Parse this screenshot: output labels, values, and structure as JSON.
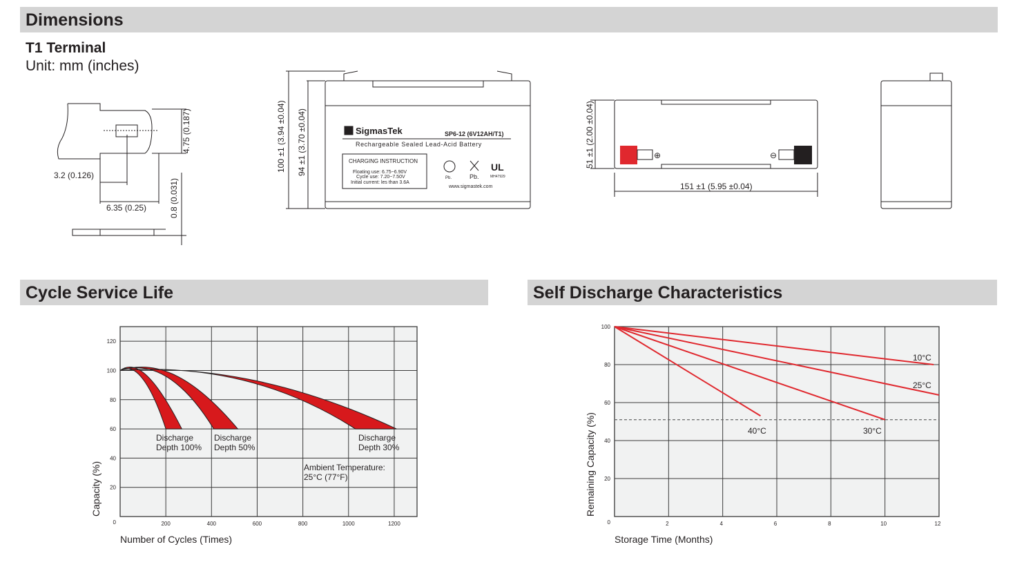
{
  "sections": {
    "dimensions": "Dimensions",
    "cycle": "Cycle Service Life",
    "self_discharge": "Self Discharge Characteristics"
  },
  "dimensions": {
    "terminal_title": "T1 Terminal",
    "unit": "Unit: mm (inches)",
    "terminal": {
      "height": "4.75 (0.187)",
      "hole_offset": "3.2 (0.126)",
      "width": "6.35 (0.25)",
      "thickness": "0.8 (0.031)"
    },
    "front": {
      "total_height": "100 ±1 (3.94 ±0.04)",
      "container_height": "94 ±1 (3.70 ±0.04)"
    },
    "top": {
      "width": "51 ±1 (2.00 ±0.04)",
      "length": "151 ±1 (5.95 ±0.04)"
    },
    "label": {
      "brand": "SigmasTek",
      "model": "SP6-12 (6V12AH/T1)",
      "type": "Rechargeable Sealed Lead-Acid Battery",
      "charging_title": "CHARGING INSTRUCTION",
      "float": "Floating use: 6.75~6.90V",
      "cycle": "Cycle use: 7.20~7.50V",
      "current": "Initial current: les than 3.6A",
      "pb1": "Pb.",
      "pb2": "Pb.",
      "ul_code": "MH47929",
      "website": "www.sigmastek.com"
    }
  },
  "chart_data": [
    {
      "type": "area",
      "title": "",
      "xlabel": "Number of Cycles (Times)",
      "ylabel": "Capacity (%)",
      "xlim": [
        0,
        1300
      ],
      "ylim": [
        0,
        130
      ],
      "xticks": [
        200,
        400,
        600,
        800,
        1000,
        1200
      ],
      "yticks": [
        0,
        20,
        40,
        60,
        80,
        100,
        120
      ],
      "grid": true,
      "fill_color": "#d7191c",
      "series": [
        {
          "name": "Discharge Depth 100%",
          "upper": [
            [
              0,
              100
            ],
            [
              60,
              107
            ],
            [
              140,
              100
            ],
            [
              270,
              60
            ]
          ],
          "lower": [
            [
              0,
              100
            ],
            [
              50,
              105
            ],
            [
              120,
              98
            ],
            [
              200,
              60
            ]
          ]
        },
        {
          "name": "Discharge Depth 50%",
          "upper": [
            [
              0,
              100
            ],
            [
              140,
              107
            ],
            [
              300,
              100
            ],
            [
              515,
              60
            ]
          ],
          "lower": [
            [
              0,
              100
            ],
            [
              120,
              106
            ],
            [
              260,
              98
            ],
            [
              410,
              60
            ]
          ]
        },
        {
          "name": "Discharge Depth 30%",
          "upper": [
            [
              0,
              100
            ],
            [
              400,
              104
            ],
            [
              800,
              90
            ],
            [
              1210,
              60
            ]
          ],
          "lower": [
            [
              0,
              100
            ],
            [
              350,
              104
            ],
            [
              700,
              93
            ],
            [
              1030,
              60
            ]
          ]
        }
      ],
      "annotations": {
        "d100": [
          "Discharge",
          "Depth 100%"
        ],
        "d50": [
          "Discharge",
          "Depth 50%"
        ],
        "d30": [
          "Discharge",
          "Depth 30%"
        ],
        "ambient": [
          "Ambient Temperature:",
          "25°C (77°F)"
        ]
      }
    },
    {
      "type": "line",
      "title": "",
      "xlabel": "Storage Time (Months)",
      "ylabel": "Remaining Capacity (%)",
      "xlim": [
        0,
        12
      ],
      "ylim": [
        0,
        100
      ],
      "xticks": [
        2,
        4,
        6,
        8,
        10,
        12
      ],
      "yticks": [
        0,
        20,
        40,
        60,
        80,
        100
      ],
      "grid": true,
      "reference_line": 51,
      "line_color": "#e0282e",
      "series": [
        {
          "name": "10°C",
          "x": [
            0,
            11.8
          ],
          "y": [
            100,
            80
          ]
        },
        {
          "name": "25°C",
          "x": [
            0,
            12
          ],
          "y": [
            100,
            64
          ]
        },
        {
          "name": "30°C",
          "x": [
            0,
            10
          ],
          "y": [
            100,
            51
          ]
        },
        {
          "name": "40°C",
          "x": [
            0,
            5.4
          ],
          "y": [
            100,
            53
          ]
        }
      ]
    }
  ]
}
